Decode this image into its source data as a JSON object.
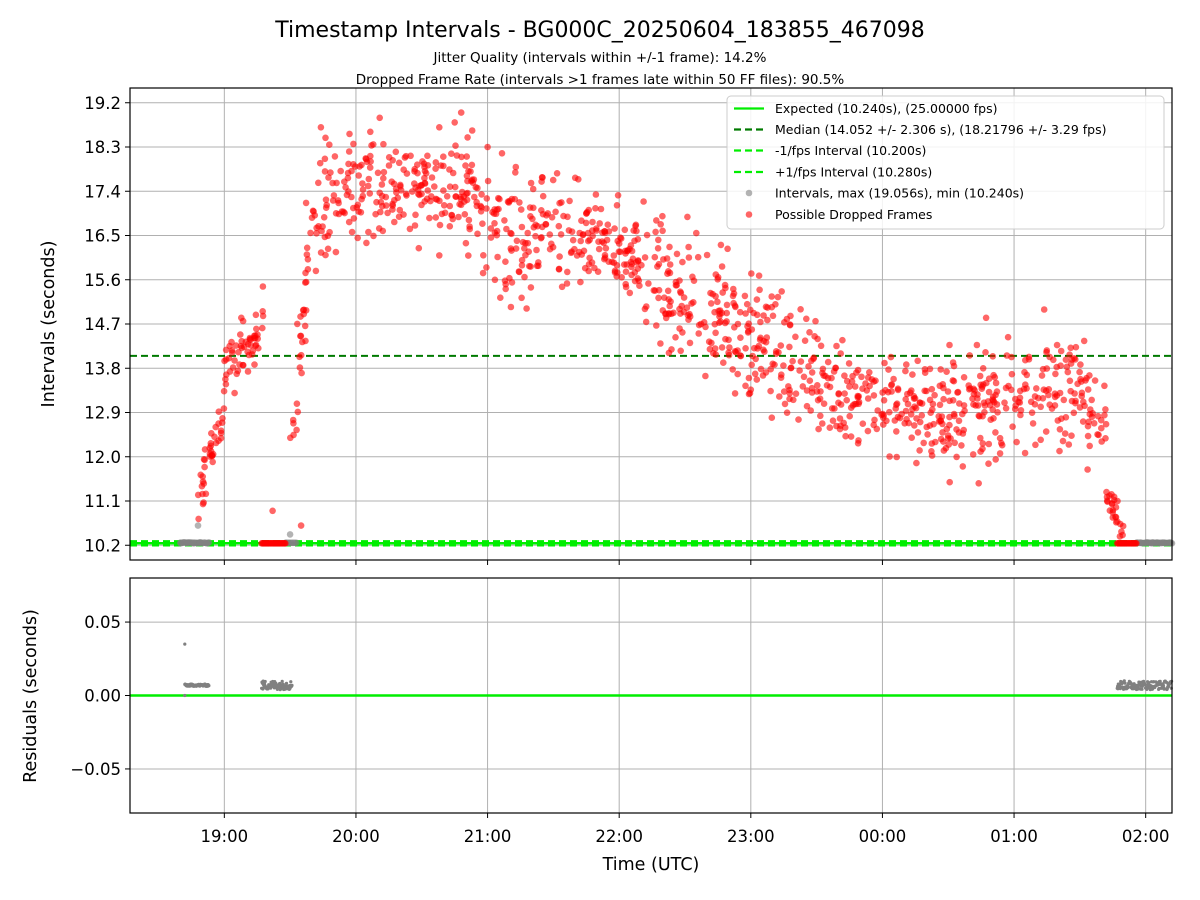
{
  "figure": {
    "title": "Timestamp Intervals - BG000C_20250604_183855_467098",
    "subtitle_1": "Jitter Quality (intervals within +/-1 frame): 14.2%",
    "subtitle_2": "Dropped Frame Rate (intervals >1 frames late within 50 FF files): 90.5%",
    "xlabel": "Time (UTC)"
  },
  "chart_data": [
    {
      "type": "scatter",
      "panel": "intervals",
      "ylabel": "Intervals (seconds)",
      "xlim": [
        "18:17",
        "02:12"
      ],
      "ylim": [
        9.9,
        19.5
      ],
      "x_ticks": [
        "19:00",
        "20:00",
        "21:00",
        "22:00",
        "23:00",
        "00:00",
        "01:00",
        "02:00"
      ],
      "y_ticks": [
        10.2,
        11.1,
        12.0,
        12.9,
        13.8,
        14.7,
        15.6,
        16.5,
        17.4,
        18.3,
        19.2
      ],
      "y_tick_labels": [
        "10.2",
        "11.1",
        "12.0",
        "12.9",
        "13.8",
        "14.7",
        "15.6",
        "16.5",
        "17.4",
        "18.3",
        "19.2"
      ],
      "grid": true,
      "legend_position": "top-right",
      "reference_lines": [
        {
          "name": "Expected (10.240s), (25.00000 fps)",
          "y": 10.24,
          "color": "#00ee00",
          "style": "solid"
        },
        {
          "name": "Median (14.052 +/- 2.306 s), (18.21796 +/- 3.29 fps)",
          "y": 14.052,
          "color": "#007a00",
          "style": "dashed"
        },
        {
          "name": "-1/fps Interval (10.200s)",
          "y": 10.2,
          "color": "#00ee00",
          "style": "dashed"
        },
        {
          "name": "+1/fps Interval (10.280s)",
          "y": 10.28,
          "color": "#00ee00",
          "style": "dashed"
        }
      ],
      "series": [
        {
          "name": "Intervals, max (19.056s), min (10.240s)",
          "color": "#808080",
          "points": [
            [
              "18:40",
              10.24
            ],
            [
              "18:43",
              10.25
            ],
            [
              "18:46",
              10.24
            ],
            [
              "18:49",
              10.25
            ],
            [
              "18:52",
              10.24
            ],
            [
              "18:48",
              10.6
            ],
            [
              "19:30",
              10.42
            ],
            [
              "19:28",
              10.25
            ],
            [
              "01:58",
              10.25
            ],
            [
              "02:03",
              10.24
            ],
            [
              "02:08",
              10.25
            ]
          ]
        },
        {
          "name": "Possible Dropped Frames",
          "color": "#ff0000",
          "segments": [
            {
              "start": "18:47",
              "end": "19:00",
              "y_start": 10.9,
              "y_end": 13.0,
              "spread": 0.25
            },
            {
              "start": "19:00",
              "end": "19:18",
              "y_start": 13.7,
              "y_end": 14.8,
              "spread": 0.3
            },
            {
              "start": "19:30",
              "end": "19:37",
              "y_start": 11.8,
              "y_end": 15.0,
              "spread": 0.6
            },
            {
              "start": "19:37",
              "end": "19:47",
              "y_start": 16.2,
              "y_end": 17.6,
              "spread": 0.6
            },
            {
              "start": "19:47",
              "end": "20:55",
              "y_start": 17.4,
              "y_end": 17.5,
              "spread": 0.55
            },
            {
              "start": "20:55",
              "end": "21:20",
              "y_start": 16.8,
              "y_end": 16.4,
              "spread": 0.7
            },
            {
              "start": "21:20",
              "end": "22:10",
              "y_start": 16.7,
              "y_end": 16.0,
              "spread": 0.5
            },
            {
              "start": "22:10",
              "end": "22:50",
              "y_start": 15.6,
              "y_end": 15.0,
              "spread": 0.65
            },
            {
              "start": "22:50",
              "end": "23:30",
              "y_start": 14.6,
              "y_end": 13.8,
              "spread": 0.6
            },
            {
              "start": "23:30",
              "end": "00:30",
              "y_start": 13.4,
              "y_end": 12.9,
              "spread": 0.55
            },
            {
              "start": "00:30",
              "end": "01:30",
              "y_start": 12.9,
              "y_end": 13.5,
              "spread": 0.6
            },
            {
              "start": "01:30",
              "end": "01:42",
              "y_start": 13.2,
              "y_end": 12.5,
              "spread": 0.5
            },
            {
              "start": "01:42",
              "end": "01:50",
              "y_start": 11.2,
              "y_end": 10.4,
              "spread": 0.2
            }
          ],
          "points": [
            [
              "19:22",
              10.9
            ],
            [
              "19:35",
              10.6
            ],
            [
              "20:38",
              18.7
            ],
            [
              "20:48",
              19.0
            ],
            [
              "20:45",
              18.8
            ],
            [
              "19:44",
              18.7
            ],
            [
              "21:00",
              18.3
            ]
          ],
          "baseline_runs": [
            {
              "start": "19:17",
              "end": "19:28",
              "y": 10.24
            },
            {
              "start": "01:47",
              "end": "01:56",
              "y": 10.24
            }
          ]
        }
      ]
    },
    {
      "type": "scatter",
      "panel": "residuals",
      "ylabel": "Residuals (seconds)",
      "xlim": [
        "18:17",
        "02:12"
      ],
      "ylim": [
        -0.08,
        0.08
      ],
      "y_ticks": [
        -0.05,
        0.0,
        0.05
      ],
      "y_tick_labels": [
        "−0.05",
        "0.00",
        "0.05"
      ],
      "grid": true,
      "reference_lines": [
        {
          "y": 0.0,
          "color": "#00ee00",
          "style": "solid"
        }
      ],
      "series": [
        {
          "color": "#808080",
          "clusters": [
            {
              "start": "18:42",
              "end": "18:53",
              "y": 0.007,
              "spread": 0.0008
            },
            {
              "start": "19:17",
              "end": "19:31",
              "y": 0.007,
              "spread": 0.003
            },
            {
              "start": "01:47",
              "end": "02:12",
              "y": 0.007,
              "spread": 0.003
            }
          ],
          "points": [
            [
              "18:42",
              0.035
            ],
            [
              "18:42",
              0.0
            ]
          ]
        }
      ]
    }
  ]
}
